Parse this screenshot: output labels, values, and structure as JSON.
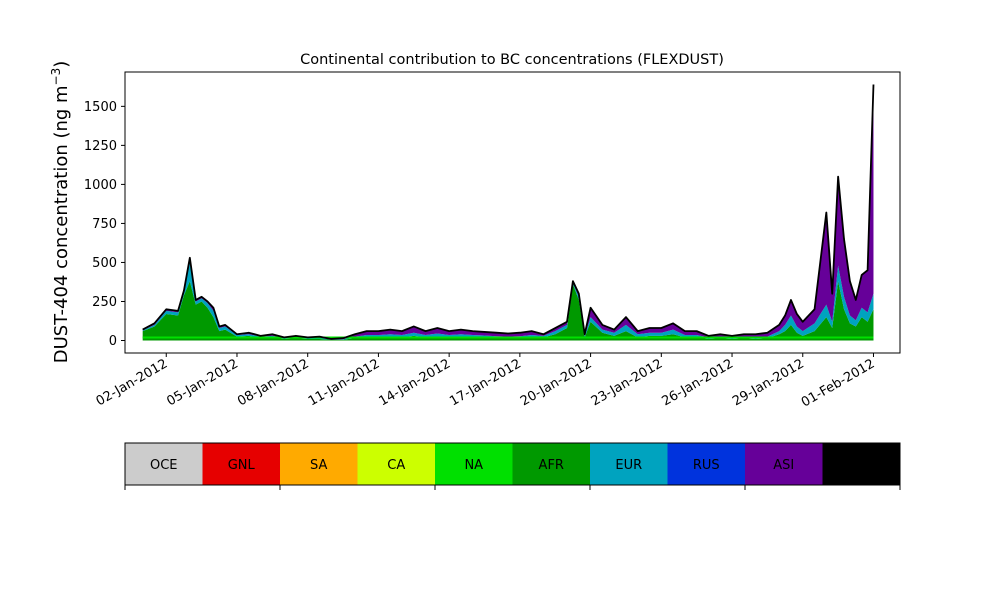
{
  "chart_data": {
    "type": "area",
    "title": "Continental contribution to BC concentrations (FLEXDUST)",
    "ylabel_main": "DUST-404 concentration (ng m",
    "ylabel_sup": "−3",
    "ylabel_close": ")",
    "xlabel": "",
    "ylim": [
      -80,
      1720
    ],
    "y_ticks": [
      0,
      250,
      500,
      750,
      1000,
      1250,
      1500
    ],
    "y_tick_labels": [
      "0",
      "250",
      "500",
      "750",
      "1000",
      "1250",
      "1500"
    ],
    "x_range_days": [
      "31-Dec-2011 06:00",
      "02-Feb-2012 03:00"
    ],
    "x_tick_labels": [
      "02-Jan-2012",
      "05-Jan-2012",
      "08-Jan-2012",
      "11-Jan-2012",
      "14-Jan-2012",
      "17-Jan-2012",
      "20-Jan-2012",
      "23-Jan-2012",
      "26-Jan-2012",
      "29-Jan-2012",
      "01-Feb-2012"
    ],
    "x_tick_dates": [
      "2012-01-02",
      "2012-01-05",
      "2012-01-08",
      "2012-01-11",
      "2012-01-14",
      "2012-01-17",
      "2012-01-20",
      "2012-01-23",
      "2012-01-26",
      "2012-01-29",
      "2012-02-01"
    ],
    "date_start": "2012-01-01",
    "date_end": "2012-02-01",
    "total_dates": [
      "2012-01-01",
      "2012-01-01 12:00",
      "2012-01-02",
      "2012-01-02 12:00",
      "2012-01-02 18:00",
      "2012-01-03",
      "2012-01-03 06:00",
      "2012-01-03 12:00",
      "2012-01-03 18:00",
      "2012-01-04",
      "2012-01-04 06:00",
      "2012-01-04 12:00",
      "2012-01-05",
      "2012-01-05 12:00",
      "2012-01-06",
      "2012-01-06 12:00",
      "2012-01-07",
      "2012-01-07 12:00",
      "2012-01-08",
      "2012-01-08 12:00",
      "2012-01-09",
      "2012-01-09 12:00",
      "2012-01-10",
      "2012-01-10 12:00",
      "2012-01-11",
      "2012-01-11 12:00",
      "2012-01-12",
      "2012-01-12 12:00",
      "2012-01-13",
      "2012-01-13 12:00",
      "2012-01-14",
      "2012-01-14 12:00",
      "2012-01-15",
      "2012-01-15 12:00",
      "2012-01-16",
      "2012-01-16 12:00",
      "2012-01-17",
      "2012-01-17 12:00",
      "2012-01-18",
      "2012-01-18 12:00",
      "2012-01-19",
      "2012-01-19 06:00",
      "2012-01-19 12:00",
      "2012-01-19 18:00",
      "2012-01-20",
      "2012-01-20 12:00",
      "2012-01-21",
      "2012-01-21 12:00",
      "2012-01-22",
      "2012-01-22 12:00",
      "2012-01-23",
      "2012-01-23 12:00",
      "2012-01-24",
      "2012-01-24 12:00",
      "2012-01-25",
      "2012-01-25 12:00",
      "2012-01-26",
      "2012-01-26 12:00",
      "2012-01-27",
      "2012-01-27 12:00",
      "2012-01-28",
      "2012-01-28 06:00",
      "2012-01-28 12:00",
      "2012-01-28 18:00",
      "2012-01-29",
      "2012-01-29 12:00",
      "2012-01-30",
      "2012-01-30 06:00",
      "2012-01-30 12:00",
      "2012-01-30 18:00",
      "2012-01-31",
      "2012-01-31 06:00",
      "2012-01-31 12:00",
      "2012-01-31 18:00",
      "2012-02-01"
    ],
    "total": [
      70,
      110,
      200,
      190,
      320,
      530,
      260,
      280,
      250,
      210,
      90,
      100,
      40,
      50,
      30,
      40,
      20,
      30,
      20,
      25,
      10,
      15,
      40,
      60,
      60,
      70,
      60,
      90,
      60,
      80,
      60,
      70,
      60,
      55,
      50,
      45,
      50,
      60,
      40,
      80,
      120,
      380,
      300,
      40,
      210,
      100,
      70,
      150,
      60,
      80,
      80,
      110,
      60,
      60,
      30,
      40,
      30,
      40,
      40,
      50,
      100,
      160,
      260,
      170,
      120,
      200,
      820,
      300,
      1050,
      650,
      380,
      260,
      420,
      450,
      1640
    ],
    "series": [
      {
        "name": "AFR",
        "values": [
          60,
          90,
          170,
          160,
          290,
          380,
          230,
          250,
          210,
          150,
          60,
          70,
          25,
          30,
          15,
          20,
          10,
          15,
          10,
          10,
          5,
          5,
          15,
          20,
          20,
          25,
          20,
          30,
          20,
          25,
          20,
          25,
          20,
          20,
          15,
          15,
          15,
          20,
          20,
          40,
          80,
          360,
          260,
          20,
          120,
          50,
          30,
          60,
          20,
          30,
          30,
          40,
          20,
          20,
          10,
          15,
          10,
          15,
          10,
          15,
          40,
          60,
          100,
          50,
          30,
          60,
          150,
          80,
          380,
          200,
          110,
          90,
          150,
          120,
          200
        ]
      },
      {
        "name": "EUR",
        "values": [
          5,
          10,
          20,
          20,
          20,
          120,
          20,
          20,
          30,
          40,
          20,
          20,
          10,
          10,
          10,
          10,
          5,
          5,
          5,
          5,
          3,
          3,
          10,
          15,
          15,
          15,
          15,
          20,
          15,
          20,
          15,
          15,
          15,
          12,
          12,
          10,
          12,
          15,
          10,
          20,
          20,
          10,
          20,
          10,
          30,
          20,
          20,
          40,
          20,
          20,
          20,
          30,
          15,
          15,
          10,
          10,
          10,
          10,
          10,
          10,
          20,
          40,
          60,
          40,
          30,
          50,
          80,
          40,
          100,
          80,
          50,
          40,
          60,
          60,
          100
        ]
      },
      {
        "name": "ASI",
        "values": [
          5,
          10,
          10,
          10,
          10,
          30,
          10,
          10,
          10,
          20,
          10,
          10,
          5,
          10,
          5,
          10,
          5,
          10,
          5,
          10,
          2,
          7,
          15,
          25,
          25,
          30,
          25,
          40,
          25,
          35,
          25,
          30,
          25,
          23,
          23,
          20,
          23,
          25,
          10,
          20,
          20,
          10,
          20,
          10,
          60,
          30,
          20,
          50,
          20,
          30,
          30,
          40,
          25,
          25,
          10,
          15,
          10,
          15,
          20,
          25,
          40,
          60,
          100,
          80,
          60,
          90,
          590,
          180,
          570,
          370,
          220,
          130,
          210,
          270,
          1340
        ]
      }
    ]
  },
  "legend": {
    "entries": [
      {
        "name": "OCE",
        "color": "#cccccc",
        "text_color": "#000000"
      },
      {
        "name": "GNL",
        "color": "#e60000",
        "text_color": "#000000"
      },
      {
        "name": "SA",
        "color": "#ffaa00",
        "text_color": "#000000"
      },
      {
        "name": "CA",
        "color": "#ccff00",
        "text_color": "#000000"
      },
      {
        "name": "NA",
        "color": "#00e000",
        "text_color": "#000000"
      },
      {
        "name": "AFR",
        "color": "#009900",
        "text_color": "#000000"
      },
      {
        "name": "EUR",
        "color": "#00a3bf",
        "text_color": "#000000"
      },
      {
        "name": "RUS",
        "color": "#0033dd",
        "text_color": "#000000"
      },
      {
        "name": "ASI",
        "color": "#660099",
        "text_color": "#000000"
      },
      {
        "name": "AUS",
        "color": "#000000",
        "text_color": "#ffffff"
      }
    ]
  },
  "colors": {
    "AFR": "#009900",
    "EUR": "#00a3bf",
    "ASI": "#660099",
    "NA": "#00e000",
    "total_line": "#000000"
  }
}
